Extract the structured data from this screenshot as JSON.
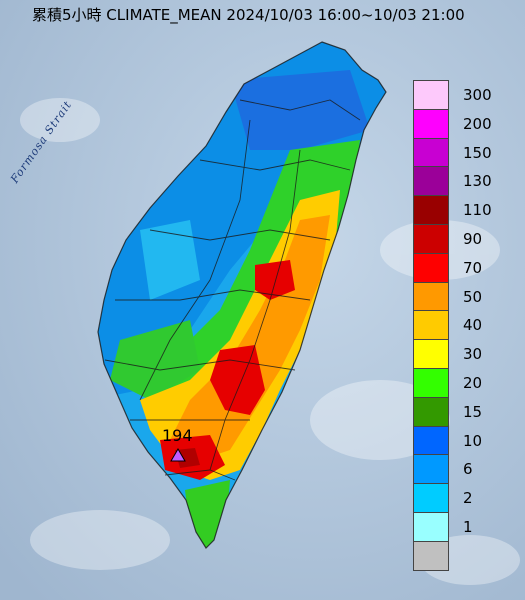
{
  "title": "累積5小時 CLIMATE_MEAN 2024/10/03 16:00~10/03 21:00",
  "strait_label": "Formosa Strait",
  "peak": {
    "value": "194",
    "marker_color": "#c05cff"
  },
  "legend": [
    {
      "label": "300",
      "color": "#fdc9fb"
    },
    {
      "label": "200",
      "color": "#fe00fe"
    },
    {
      "label": "150",
      "color": "#c800d2"
    },
    {
      "label": "130",
      "color": "#9b0099"
    },
    {
      "label": "110",
      "color": "#990000"
    },
    {
      "label": "90",
      "color": "#cc0000"
    },
    {
      "label": "70",
      "color": "#fe0000"
    },
    {
      "label": "50",
      "color": "#ff9900"
    },
    {
      "label": "40",
      "color": "#ffcb00"
    },
    {
      "label": "30",
      "color": "#ffff00"
    },
    {
      "label": "20",
      "color": "#33ff00"
    },
    {
      "label": "15",
      "color": "#339900"
    },
    {
      "label": "10",
      "color": "#0066ff"
    },
    {
      "label": "6",
      "color": "#0099ff"
    },
    {
      "label": "2",
      "color": "#00ccff"
    },
    {
      "label": "1",
      "color": "#99ffff"
    },
    {
      "label": "",
      "color": "#c0c0c0"
    }
  ],
  "sea_color": "#b5c9dd"
}
